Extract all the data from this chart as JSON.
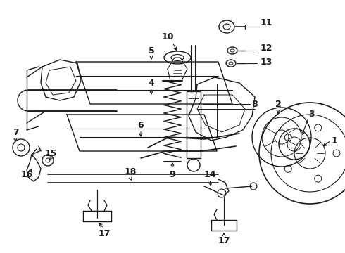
{
  "bg_color": "#ffffff",
  "lc": "#1a1a1a",
  "figsize": [
    4.9,
    3.6
  ],
  "dpi": 100,
  "xlim": [
    0,
    490
  ],
  "ylim": [
    0,
    360
  ]
}
